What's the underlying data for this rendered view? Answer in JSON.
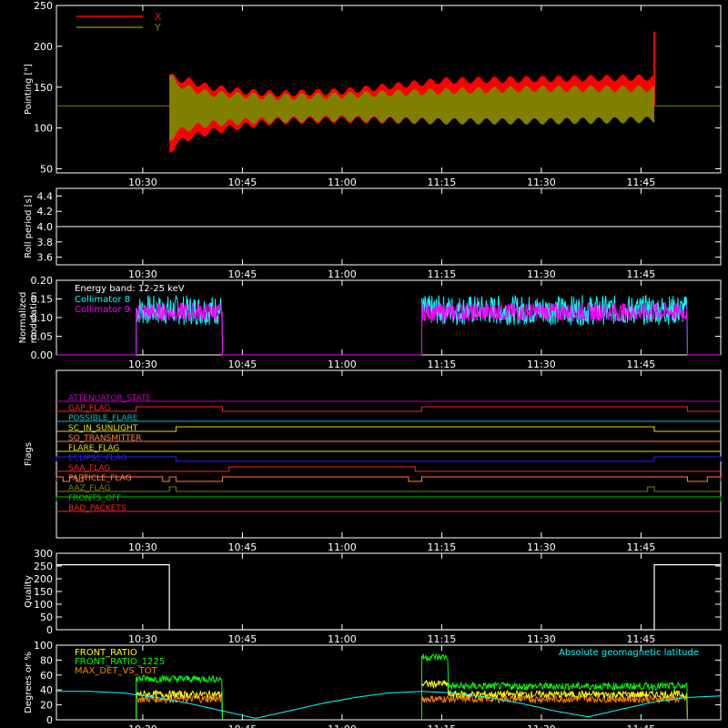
{
  "x_axis": {
    "start": "10:17",
    "end": "11:57",
    "ticks": [
      "10:30",
      "10:45",
      "11:00",
      "11:15",
      "11:30",
      "11:45"
    ]
  },
  "chart_data": [
    {
      "type": "line",
      "ylabel": "Pointing [\"]",
      "ylim": [
        45,
        250
      ],
      "yticks": [
        "50",
        "100",
        "150",
        "200",
        "250"
      ],
      "legend": [
        {
          "name": "X",
          "color": "#ff0000"
        },
        {
          "name": "Y",
          "color": "#808000"
        }
      ],
      "legend_position": "top-left",
      "reference_line": 127,
      "series": [
        {
          "name": "X",
          "color": "#ff0000",
          "time": [
            "10:34",
            "10:35",
            "10:37",
            "10:40",
            "10:45",
            "10:50",
            "11:00",
            "11:15",
            "11:30",
            "11:47"
          ],
          "min": [
            70,
            80,
            88,
            95,
            102,
            108,
            110,
            108,
            110,
            112
          ],
          "max": [
            165,
            160,
            158,
            150,
            145,
            142,
            145,
            158,
            160,
            162
          ],
          "end_spike": 218
        },
        {
          "name": "Y",
          "color": "#808000",
          "time": [
            "10:34",
            "10:35",
            "10:37",
            "10:40",
            "10:45",
            "10:50",
            "11:00",
            "11:15",
            "11:30",
            "11:47"
          ],
          "min": [
            85,
            95,
            100,
            105,
            108,
            110,
            112,
            108,
            108,
            110
          ],
          "max": [
            165,
            155,
            148,
            142,
            140,
            138,
            140,
            145,
            148,
            148
          ]
        }
      ]
    },
    {
      "type": "line",
      "ylabel": "Roll period [s]",
      "ylim": [
        3.5,
        4.5
      ],
      "yticks": [
        "3.6",
        "3.8",
        "4.0",
        "4.2",
        "4.4"
      ],
      "series": [
        {
          "color": "#ffffff",
          "value": 4.0
        }
      ]
    },
    {
      "type": "line",
      "ylabel": "Normalized modulation",
      "ylim": [
        0,
        0.2
      ],
      "yticks": [
        "0.00",
        "0.05",
        "0.10",
        "0.15",
        "0.20"
      ],
      "annotation": "Energy band: 12-25 keV",
      "legend": [
        {
          "name": "Collimator 8",
          "color": "#00ffff"
        },
        {
          "name": "Collimator 9",
          "color": "#ff00ff"
        }
      ],
      "active_intervals": [
        [
          "10:29",
          "10:42"
        ],
        [
          "11:12",
          "11:52"
        ]
      ],
      "series": [
        {
          "name": "Collimator 8",
          "color": "#00ffff",
          "mean": 0.12,
          "spread": 0.04
        },
        {
          "name": "Collimator 9",
          "color": "#ff00ff",
          "mean": 0.115,
          "spread": 0.025
        }
      ]
    },
    {
      "type": "line",
      "ylabel": "Flags",
      "flags": [
        {
          "name": "ATTENUATOR_STATE",
          "color": "#c000c0",
          "segments": []
        },
        {
          "name": "GAP_FLAG",
          "color": "#ff2020",
          "segments": [
            [
              "10:29",
              "10:42"
            ],
            [
              "11:12",
              "11:52"
            ]
          ]
        },
        {
          "name": "POSSIBLE_FLARE",
          "color": "#00c0c0",
          "segments": []
        },
        {
          "name": "SC_IN_SUNLIGHT",
          "color": "#e0e000",
          "segments": [
            [
              "10:35",
              "11:47"
            ]
          ]
        },
        {
          "name": "SO_TRANSMITTER",
          "color": "#ff8040",
          "segments": []
        },
        {
          "name": "FLARE_FLAG",
          "color": "#e0e000",
          "segments": []
        },
        {
          "name": "ECLIPSE_FLAG",
          "color": "#2020ff",
          "segments": [
            [
              "10:17",
              "10:35"
            ],
            [
              "11:47",
              "11:57"
            ]
          ]
        },
        {
          "name": "SAA_FLAG",
          "color": "#ff2020",
          "segments": [
            [
              "10:43",
              "11:11"
            ]
          ]
        },
        {
          "name": "PARTICLE_FLAG",
          "color": "#ff8040",
          "segments": [
            [
              "10:17",
              "10:18"
            ],
            [
              "10:19",
              "10:20"
            ],
            [
              "10:21",
              "10:33"
            ],
            [
              "10:34",
              "10:35"
            ],
            [
              "10:42",
              "11:10"
            ],
            [
              "11:12",
              "11:52"
            ],
            [
              "11:55",
              "11:57"
            ]
          ]
        },
        {
          "name": "AAZ_FLAG",
          "color": "#808000",
          "segments": [
            [
              "10:34",
              "10:35"
            ],
            [
              "11:46",
              "11:47"
            ]
          ]
        },
        {
          "name": "FRONTS_OFF",
          "color": "#00c000",
          "segments": [
            [
              "10:17",
              "11:57"
            ]
          ]
        },
        {
          "name": "BAD_PACKETS",
          "color": "#ff2020",
          "segments": []
        }
      ]
    },
    {
      "type": "line",
      "ylabel": "Quality",
      "ylim": [
        0,
        300
      ],
      "yticks": [
        "0",
        "50",
        "100",
        "150",
        "200",
        "250",
        "300"
      ],
      "series": [
        {
          "color": "#ffffff",
          "time": [
            "10:17",
            "10:34",
            "10:34",
            "10:35",
            "11:46",
            "11:47",
            "11:47",
            "11:57"
          ],
          "values": [
            255,
            255,
            0,
            0,
            0,
            0,
            255,
            255
          ]
        }
      ]
    },
    {
      "type": "line",
      "ylabel": "Degrees or %",
      "ylim": [
        0,
        100
      ],
      "yticks": [
        "0",
        "20",
        "40",
        "60",
        "80",
        "100"
      ],
      "annotation": "Absolute geomagnetic latitude",
      "annotation_color": "#00ffff",
      "legend": [
        {
          "name": "FRONT_RATIO",
          "color": "#ffff00"
        },
        {
          "name": "FRONT_RATIO_1225",
          "color": "#00ff00"
        },
        {
          "name": "MAX_DET_VS_TOT",
          "color": "#ff8000"
        }
      ],
      "series": [
        {
          "name": "Absolute geomagnetic latitude",
          "color": "#00ffff",
          "time": [
            "10:17",
            "10:22",
            "10:27",
            "10:32",
            "10:37",
            "10:42",
            "10:47",
            "10:52",
            "10:57",
            "11:02",
            "11:07",
            "11:12",
            "11:17",
            "11:22",
            "11:27",
            "11:32",
            "11:37",
            "11:42",
            "11:47",
            "11:52",
            "11:57"
          ],
          "values": [
            38,
            38,
            36,
            30,
            22,
            12,
            2,
            12,
            22,
            30,
            36,
            38,
            36,
            30,
            22,
            12,
            4,
            14,
            24,
            30,
            32
          ]
        },
        {
          "name": "FRONT_RATIO",
          "color": "#ffff00",
          "mean": 34
        },
        {
          "name": "FRONT_RATIO_1225",
          "color": "#00ff00",
          "mean": 45
        },
        {
          "name": "MAX_DET_VS_TOT",
          "color": "#ff8000",
          "mean": 28
        }
      ]
    }
  ]
}
